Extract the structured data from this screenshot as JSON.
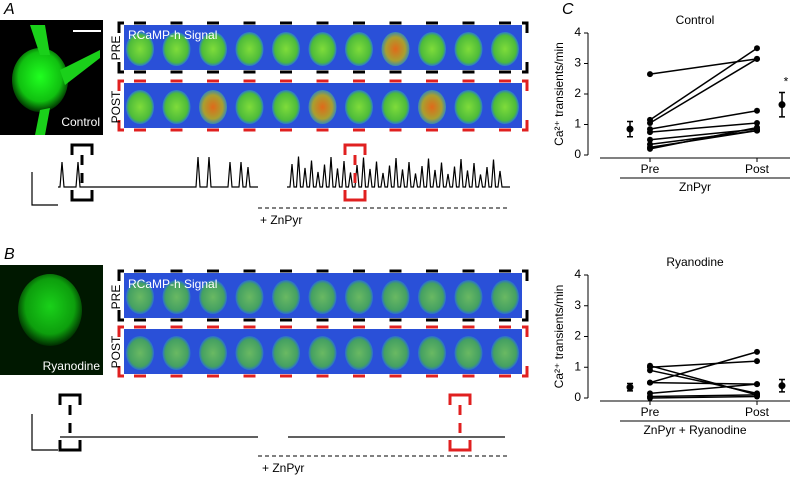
{
  "panel_labels": [
    "A",
    "B",
    "C"
  ],
  "panel_a": {
    "image_label": "Control",
    "strip_title": "RCaMP-h Signal",
    "pre": "PRE",
    "post": "POST",
    "drug": "+ ZnPyr"
  },
  "panel_b": {
    "image_label": "Ryanodine",
    "strip_title": "RCaMP-h Signal",
    "pre": "PRE",
    "post": "POST",
    "drug": "+ ZnPyr"
  },
  "chart_data": [
    {
      "type": "paired",
      "title": "Control",
      "ylabel": "Ca²⁺ transients/min",
      "xlabel": "ZnPyr",
      "categories": [
        "Pre",
        "Post"
      ],
      "pairs": [
        [
          2.65,
          3.15
        ],
        [
          1.15,
          3.5
        ],
        [
          1.05,
          3.15
        ],
        [
          0.85,
          1.45
        ],
        [
          0.75,
          1.05
        ],
        [
          0.5,
          0.85
        ],
        [
          0.35,
          0.8
        ],
        [
          0.25,
          0.8
        ],
        [
          0.2,
          0.9
        ]
      ],
      "means": [
        0.85,
        1.65
      ],
      "errors": [
        0.25,
        0.4
      ],
      "annotation": "*",
      "color": "#000000",
      "ylim": [
        0,
        4
      ],
      "yticks": [
        0,
        1,
        2,
        3,
        4
      ]
    },
    {
      "type": "paired",
      "title": "Ryanodine",
      "ylabel": "Ca²⁺ transients/min",
      "xlabel": "ZnPyr + Ryanodine",
      "categories": [
        "Pre",
        "Post"
      ],
      "pairs": [
        [
          1.05,
          0.1
        ],
        [
          1.0,
          1.2
        ],
        [
          0.5,
          1.5
        ],
        [
          0.5,
          0.45
        ],
        [
          0.9,
          0.15
        ],
        [
          0.15,
          0.45
        ],
        [
          0.05,
          0.1
        ],
        [
          0.0,
          0.05
        ]
      ],
      "means": [
        0.35,
        0.4
      ],
      "errors": [
        0.12,
        0.2
      ],
      "color": "#000000",
      "ylim": [
        0,
        4
      ],
      "yticks": [
        0,
        1,
        2,
        3,
        4
      ]
    }
  ]
}
